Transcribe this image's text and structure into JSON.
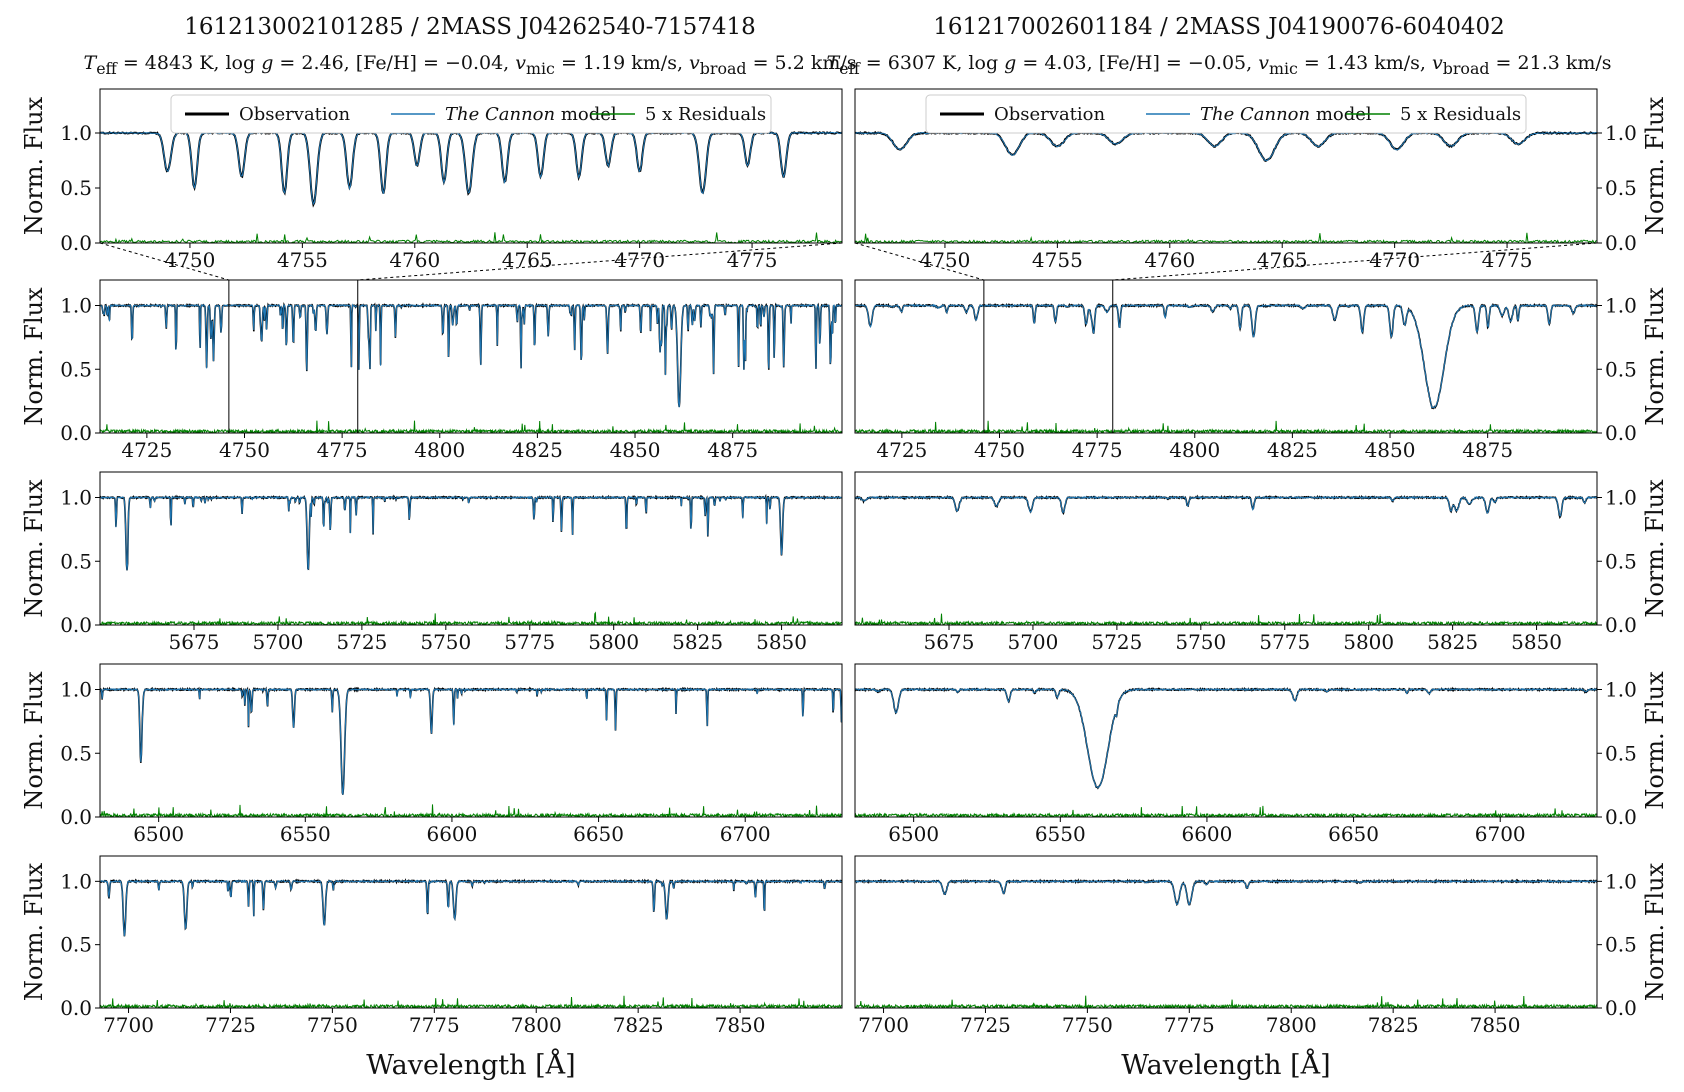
{
  "figure": {
    "left_title": "161213002101285 / 2MASS J04262540-7157418",
    "right_title": "161217002601184 / 2MASS J04190076-6040402",
    "left_subtitle": "T_eff = 4843 K, log g = 2.46, [Fe/H] = −0.04, v_mic = 1.19 km/s, v_broad = 5.2 km/s",
    "right_subtitle": "T_eff = 6307 K, log g = 4.03, [Fe/H] = −0.05, v_mic = 1.43 km/s, v_broad = 21.3 km/s",
    "colors": {
      "observation": "#000000",
      "model": "#1f77b4",
      "residuals": "#008000"
    }
  },
  "chart_data": [
    {
      "type": "line",
      "panel": "left-zoom",
      "xlabel": "",
      "ylabel": "Norm. Flux",
      "xlim": [
        4746,
        4779
      ],
      "ylim": [
        0,
        1.4
      ],
      "xticks": [
        4750,
        4755,
        4760,
        4765,
        4770,
        4775
      ],
      "yticks": [
        0.0,
        0.5,
        1.0
      ],
      "legend": {
        "position": "top",
        "entries": [
          "Observation",
          "The Cannon model",
          "5 x Residuals"
        ]
      },
      "series": [
        {
          "name": "Observation"
        },
        {
          "name": "The Cannon model"
        },
        {
          "name": "5 x Residuals"
        }
      ],
      "lines": [
        {
          "x": 4749,
          "depth": 0.35,
          "width": 0.15
        },
        {
          "x": 4750.2,
          "depth": 0.5,
          "width": 0.12
        },
        {
          "x": 4752.3,
          "depth": 0.4,
          "width": 0.13
        },
        {
          "x": 4754.2,
          "depth": 0.55,
          "width": 0.12
        },
        {
          "x": 4755.5,
          "depth": 0.65,
          "width": 0.15
        },
        {
          "x": 4757.1,
          "depth": 0.5,
          "width": 0.13
        },
        {
          "x": 4758.6,
          "depth": 0.55,
          "width": 0.12
        },
        {
          "x": 4760.1,
          "depth": 0.3,
          "width": 0.12
        },
        {
          "x": 4761.3,
          "depth": 0.45,
          "width": 0.12
        },
        {
          "x": 4762.4,
          "depth": 0.55,
          "width": 0.15
        },
        {
          "x": 4764.0,
          "depth": 0.45,
          "width": 0.12
        },
        {
          "x": 4765.6,
          "depth": 0.4,
          "width": 0.12
        },
        {
          "x": 4767.3,
          "depth": 0.4,
          "width": 0.12
        },
        {
          "x": 4768.6,
          "depth": 0.3,
          "width": 0.12
        },
        {
          "x": 4770.0,
          "depth": 0.35,
          "width": 0.12
        },
        {
          "x": 4772.8,
          "depth": 0.55,
          "width": 0.15
        },
        {
          "x": 4774.8,
          "depth": 0.3,
          "width": 0.12
        },
        {
          "x": 4776.4,
          "depth": 0.4,
          "width": 0.12
        }
      ]
    },
    {
      "type": "line",
      "panel": "right-zoom",
      "xlabel": "",
      "ylabel": "Norm. Flux",
      "xlim": [
        4746,
        4779
      ],
      "ylim": [
        0,
        1.4
      ],
      "xticks": [
        4750,
        4755,
        4760,
        4765,
        4770,
        4775
      ],
      "yticks": [
        0.0,
        0.5,
        1.0
      ],
      "legend": {
        "position": "top",
        "entries": [
          "Observation",
          "The Cannon model",
          "5 x Residuals"
        ]
      },
      "series": [
        {
          "name": "Observation"
        },
        {
          "name": "The Cannon model"
        },
        {
          "name": "5 x Residuals"
        }
      ],
      "lines": [
        {
          "x": 4748,
          "depth": 0.15,
          "width": 0.3
        },
        {
          "x": 4753,
          "depth": 0.2,
          "width": 0.3
        },
        {
          "x": 4755,
          "depth": 0.12,
          "width": 0.3
        },
        {
          "x": 4757.6,
          "depth": 0.1,
          "width": 0.3
        },
        {
          "x": 4762,
          "depth": 0.12,
          "width": 0.3
        },
        {
          "x": 4764.3,
          "depth": 0.25,
          "width": 0.35
        },
        {
          "x": 4766.6,
          "depth": 0.12,
          "width": 0.3
        },
        {
          "x": 4770.1,
          "depth": 0.15,
          "width": 0.3
        },
        {
          "x": 4772.5,
          "depth": 0.12,
          "width": 0.3
        },
        {
          "x": 4775.5,
          "depth": 0.1,
          "width": 0.3
        }
      ]
    },
    {
      "type": "line",
      "panel": "left-blue",
      "xlabel": "",
      "ylabel": "Norm. Flux",
      "xlim": [
        4713,
        4903
      ],
      "ylim": [
        0,
        1.2
      ],
      "xticks": [
        4725,
        4750,
        4775,
        4800,
        4825,
        4850,
        4875
      ],
      "yticks": [
        0.0,
        0.5,
        1.0
      ],
      "zoom_window": [
        4746,
        4779
      ],
      "series": [
        {
          "name": "Observation"
        },
        {
          "name": "The Cannon model"
        },
        {
          "name": "5 x Residuals"
        }
      ],
      "lines": [
        {
          "x": 4861.3,
          "depth": 0.8,
          "width": 0.4
        }
      ]
    },
    {
      "type": "line",
      "panel": "right-blue",
      "xlabel": "",
      "ylabel": "Norm. Flux",
      "xlim": [
        4713,
        4903
      ],
      "ylim": [
        0,
        1.2
      ],
      "xticks": [
        4725,
        4750,
        4775,
        4800,
        4825,
        4850,
        4875
      ],
      "yticks": [
        0.0,
        0.5,
        1.0
      ],
      "zoom_window": [
        4746,
        4779
      ],
      "series": [
        {
          "name": "Observation"
        },
        {
          "name": "The Cannon model"
        },
        {
          "name": "5 x Residuals"
        }
      ],
      "lines": [
        {
          "x": 4861.3,
          "depth": 0.8,
          "width": 2.5
        }
      ]
    },
    {
      "type": "line",
      "panel": "left-green",
      "xlabel": "",
      "ylabel": "Norm. Flux",
      "xlim": [
        5647,
        5868
      ],
      "ylim": [
        0,
        1.2
      ],
      "xticks": [
        5675,
        5700,
        5725,
        5750,
        5775,
        5800,
        5825,
        5850
      ],
      "yticks": [
        0.0,
        0.5,
        1.0
      ],
      "series": [
        {
          "name": "Observation"
        },
        {
          "name": "The Cannon model"
        },
        {
          "name": "5 x Residuals"
        }
      ],
      "lines": [
        {
          "x": 5655,
          "depth": 0.55,
          "width": 0.3
        },
        {
          "x": 5709,
          "depth": 0.58,
          "width": 0.3
        },
        {
          "x": 5850,
          "depth": 0.45,
          "width": 0.3
        }
      ]
    },
    {
      "type": "line",
      "panel": "right-green",
      "xlabel": "",
      "ylabel": "Norm. Flux",
      "xlim": [
        5647,
        5868
      ],
      "ylim": [
        0,
        1.2
      ],
      "xticks": [
        5675,
        5700,
        5725,
        5750,
        5775,
        5800,
        5825,
        5850
      ],
      "yticks": [
        0.0,
        0.5,
        1.0
      ],
      "series": [
        {
          "name": "Observation"
        },
        {
          "name": "The Cannon model"
        },
        {
          "name": "5 x Residuals"
        }
      ],
      "lines": [
        {
          "x": 5709,
          "depth": 0.12,
          "width": 0.5
        },
        {
          "x": 5857,
          "depth": 0.15,
          "width": 0.5
        }
      ]
    },
    {
      "type": "line",
      "panel": "left-red",
      "xlabel": "",
      "ylabel": "Norm. Flux",
      "xlim": [
        6480,
        6733
      ],
      "ylim": [
        0,
        1.2
      ],
      "xticks": [
        6500,
        6550,
        6600,
        6650,
        6700
      ],
      "yticks": [
        0.0,
        0.5,
        1.0
      ],
      "series": [
        {
          "name": "Observation"
        },
        {
          "name": "The Cannon model"
        },
        {
          "name": "5 x Residuals"
        }
      ],
      "lines": [
        {
          "x": 6494,
          "depth": 0.45,
          "width": 0.4
        },
        {
          "x": 6546,
          "depth": 0.3,
          "width": 0.3
        },
        {
          "x": 6562.8,
          "depth": 0.82,
          "width": 0.6
        },
        {
          "x": 6593,
          "depth": 0.35,
          "width": 0.3
        }
      ]
    },
    {
      "type": "line",
      "panel": "right-red",
      "xlabel": "",
      "ylabel": "Norm. Flux",
      "xlim": [
        6480,
        6733
      ],
      "ylim": [
        0,
        1.2
      ],
      "xticks": [
        6500,
        6550,
        6600,
        6650,
        6700
      ],
      "yticks": [
        0.0,
        0.5,
        1.0
      ],
      "series": [
        {
          "name": "Observation"
        },
        {
          "name": "The Cannon model"
        },
        {
          "name": "5 x Residuals"
        }
      ],
      "lines": [
        {
          "x": 6494,
          "depth": 0.18,
          "width": 0.8
        },
        {
          "x": 6562.8,
          "depth": 0.77,
          "width": 3.5
        }
      ]
    },
    {
      "type": "line",
      "panel": "left-ir",
      "xlabel": "Wavelength [Å]",
      "ylabel": "Norm. Flux",
      "xlim": [
        7693,
        7875
      ],
      "ylim": [
        0,
        1.2
      ],
      "xticks": [
        7700,
        7725,
        7750,
        7775,
        7800,
        7825,
        7850
      ],
      "yticks": [
        0.0,
        0.5,
        1.0
      ],
      "series": [
        {
          "name": "Observation"
        },
        {
          "name": "The Cannon model"
        },
        {
          "name": "5 x Residuals"
        }
      ],
      "lines": [
        {
          "x": 7699,
          "depth": 0.43,
          "width": 0.3
        },
        {
          "x": 7714,
          "depth": 0.38,
          "width": 0.3
        },
        {
          "x": 7748,
          "depth": 0.35,
          "width": 0.3
        },
        {
          "x": 7780,
          "depth": 0.3,
          "width": 0.3
        },
        {
          "x": 7832,
          "depth": 0.3,
          "width": 0.3
        }
      ]
    },
    {
      "type": "line",
      "panel": "right-ir",
      "xlabel": "Wavelength [Å]",
      "ylabel": "Norm. Flux",
      "xlim": [
        7693,
        7875
      ],
      "ylim": [
        0,
        1.2
      ],
      "xticks": [
        7700,
        7725,
        7750,
        7775,
        7800,
        7825,
        7850
      ],
      "yticks": [
        0.0,
        0.5,
        1.0
      ],
      "series": [
        {
          "name": "Observation"
        },
        {
          "name": "The Cannon model"
        },
        {
          "name": "5 x Residuals"
        }
      ],
      "lines": [
        {
          "x": 7772,
          "depth": 0.18,
          "width": 0.6
        },
        {
          "x": 7775,
          "depth": 0.18,
          "width": 0.6
        },
        {
          "x": 7715,
          "depth": 0.1,
          "width": 0.5
        }
      ]
    }
  ]
}
